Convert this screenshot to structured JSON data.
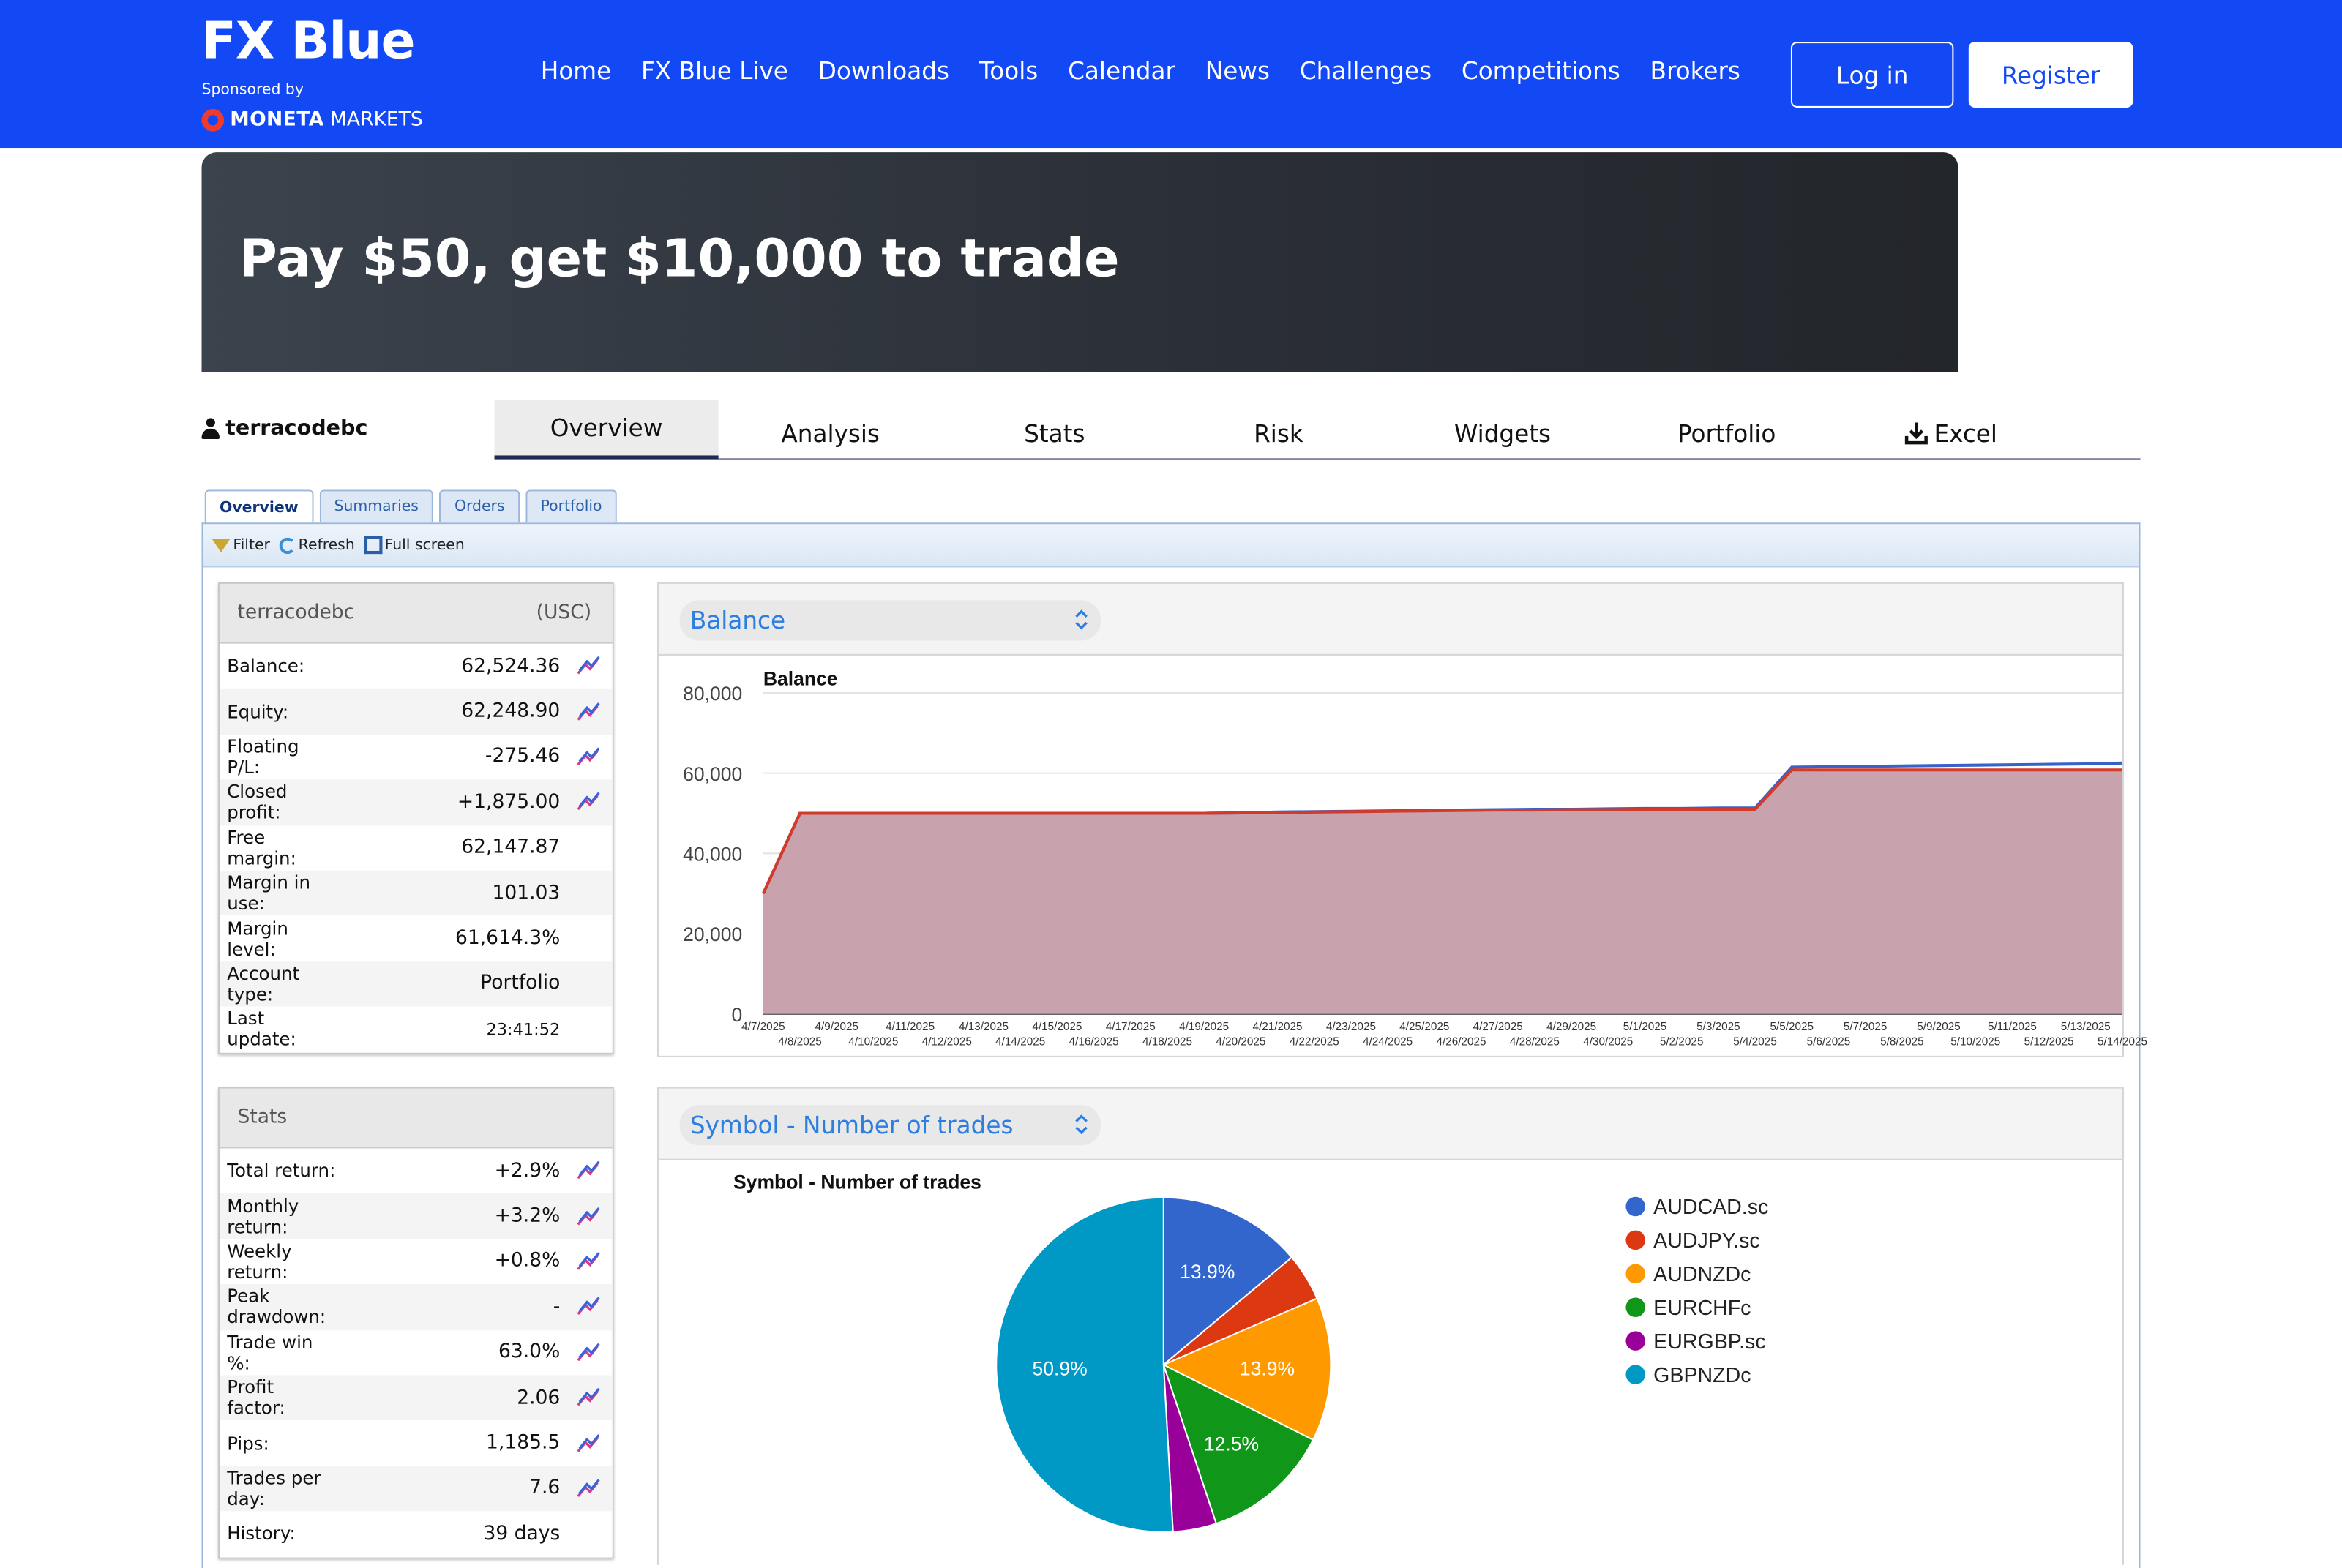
{
  "header": {
    "logo_title": "FX Blue",
    "sponsor_text": "Sponsored by",
    "sponsor_brand_bold": "MONETA",
    "sponsor_brand_rest": " MARKETS",
    "nav": [
      "Home",
      "FX Blue Live",
      "Downloads",
      "Tools",
      "Calendar",
      "News",
      "Challenges",
      "Competitions",
      "Brokers"
    ],
    "login_label": "Log in",
    "register_label": "Register"
  },
  "banner": {
    "text": "Pay $50, get $10,000 to trade"
  },
  "account": {
    "username": "terracodebc"
  },
  "main_tabs": [
    "Overview",
    "Analysis",
    "Stats",
    "Risk",
    "Widgets",
    "Portfolio",
    "Excel"
  ],
  "active_main_tab": "Overview",
  "sub_tabs": [
    "Overview",
    "Summaries",
    "Orders",
    "Portfolio"
  ],
  "toolbar": {
    "filter": "Filter",
    "refresh": "Refresh",
    "fullscreen": "Full screen"
  },
  "account_box": {
    "title": "terracodebc",
    "currency": "(USC)",
    "rows": [
      {
        "label": "Balance:",
        "value": "62,524.36",
        "trend": true
      },
      {
        "label": "Equity:",
        "value": "62,248.90",
        "trend": true
      },
      {
        "label": "Floating P/L:",
        "value": "-275.46",
        "trend": true
      },
      {
        "label": "Closed profit:",
        "value": "+1,875.00",
        "trend": true
      },
      {
        "label": "Free margin:",
        "value": "62,147.87",
        "trend": false
      },
      {
        "label": "Margin in use:",
        "value": "101.03",
        "trend": false
      },
      {
        "label": "Margin level:",
        "value": "61,614.3%",
        "trend": false
      },
      {
        "label": "Account type:",
        "value": "Portfolio",
        "trend": false
      },
      {
        "label": "Last update:",
        "value": "23:41:52",
        "trend": false
      }
    ]
  },
  "stats_box": {
    "title": "Stats",
    "rows": [
      {
        "label": "Total return:",
        "value": "+2.9%",
        "trend": true
      },
      {
        "label": "Monthly return:",
        "value": "+3.2%",
        "trend": true
      },
      {
        "label": "Weekly return:",
        "value": "+0.8%",
        "trend": true
      },
      {
        "label": "Peak drawdown:",
        "value": "-",
        "trend": true
      },
      {
        "label": "Trade win %:",
        "value": "63.0%",
        "trend": true
      },
      {
        "label": "Profit factor:",
        "value": "2.06",
        "trend": true
      },
      {
        "label": "Pips:",
        "value": "1,185.5",
        "trend": true
      },
      {
        "label": "Trades per day:",
        "value": "7.6",
        "trend": true
      },
      {
        "label": "History:",
        "value": "39 days",
        "trend": false
      }
    ]
  },
  "balance_card": {
    "select_label": "Balance"
  },
  "symbol_card": {
    "select_label": "Symbol - Number of trades"
  },
  "colors": {
    "header_blue": "#1249f5",
    "balance_fill": "#c8a2ad",
    "balance_line": "#d23a2a",
    "equity_line": "#3662c9"
  },
  "chart_data": [
    {
      "type": "area",
      "title": "Balance",
      "ylim": [
        0,
        80000
      ],
      "yticks": [
        "0",
        "20,000",
        "40,000",
        "60,000",
        "80,000"
      ],
      "x": [
        "4/7/2025",
        "4/8/2025",
        "4/9/2025",
        "4/10/2025",
        "4/11/2025",
        "4/12/2025",
        "4/13/2025",
        "4/14/2025",
        "4/15/2025",
        "4/16/2025",
        "4/17/2025",
        "4/18/2025",
        "4/19/2025",
        "4/20/2025",
        "4/21/2025",
        "4/22/2025",
        "4/23/2025",
        "4/24/2025",
        "4/25/2025",
        "4/26/2025",
        "4/27/2025",
        "4/28/2025",
        "4/29/2025",
        "4/30/2025",
        "5/1/2025",
        "5/2/2025",
        "5/3/2025",
        "5/4/2025",
        "5/5/2025",
        "5/6/2025",
        "5/7/2025",
        "5/8/2025",
        "5/9/2025",
        "5/10/2025",
        "5/11/2025",
        "5/12/2025",
        "5/13/2025",
        "5/14/2025"
      ],
      "series": [
        {
          "values": [
            30000,
            50000,
            50000,
            50000,
            50000,
            50000,
            50000,
            50000,
            50000,
            50000,
            50000,
            50000,
            50000,
            50100,
            50300,
            50400,
            50500,
            50600,
            50700,
            50800,
            50900,
            51000,
            51000,
            51100,
            51200,
            51200,
            51300,
            51300,
            61500,
            61600,
            61700,
            61800,
            61900,
            62000,
            62100,
            62200,
            62300,
            62524
          ]
        },
        {
          "values": [
            30000,
            50000,
            50000,
            50000,
            50000,
            50000,
            50000,
            50000,
            50000,
            50000,
            50000,
            50000,
            50000,
            50100,
            50200,
            50300,
            50400,
            50500,
            50600,
            50700,
            50800,
            50800,
            50900,
            50900,
            51000,
            51000,
            51000,
            51000,
            60800,
            60800,
            60800,
            60800,
            60800,
            60800,
            60800,
            60800,
            60800,
            60800
          ]
        }
      ]
    },
    {
      "type": "pie",
      "title": "Symbol - Number of trades",
      "categories": [
        "AUDCAD.sc",
        "AUDJPY.sc",
        "AUDNZDc",
        "EURCHFc",
        "EURGBP.sc",
        "GBPNZDc"
      ],
      "values": [
        13.9,
        4.6,
        13.9,
        12.5,
        4.2,
        50.9
      ],
      "data_labels": [
        "13.9%",
        "",
        "13.9%",
        "12.5%",
        "",
        "50.9%"
      ],
      "colors": [
        "#3366cc",
        "#dc3912",
        "#ff9900",
        "#109618",
        "#990099",
        "#0099c6"
      ]
    }
  ]
}
